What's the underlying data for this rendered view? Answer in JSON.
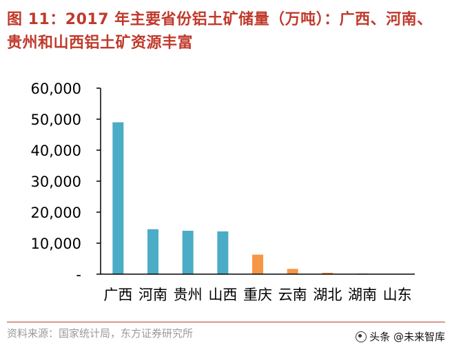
{
  "header": {
    "title": "图 11：2017 年主要省份铝土矿储量（万吨）：广西、河南、贵州和山西铝土矿资源丰富"
  },
  "footer": {
    "source": "资料来源：国家统计局，东方证券研究所",
    "watermark": "头条 @未来智库"
  },
  "colors": {
    "title": "#c0392b",
    "bar_blue": "#4bacc6",
    "bar_orange": "#f79646",
    "axis": "#000000"
  },
  "chart_data": {
    "type": "bar",
    "title": "",
    "xlabel": "",
    "ylabel": "",
    "categories": [
      "广西",
      "河南",
      "贵州",
      "山西",
      "重庆",
      "云南",
      "湖北",
      "湖南",
      "山东"
    ],
    "values": [
      49000,
      14500,
      14000,
      13800,
      6300,
      1700,
      450,
      200,
      80
    ],
    "bar_colors": [
      "#4bacc6",
      "#4bacc6",
      "#4bacc6",
      "#4bacc6",
      "#f79646",
      "#f79646",
      "#f79646",
      "#f79646",
      "#f79646"
    ],
    "ylim": [
      0,
      60000
    ],
    "yticks": [
      0,
      10000,
      20000,
      30000,
      40000,
      50000,
      60000
    ],
    "ytick_labels": [
      "-",
      "10,000",
      "20,000",
      "30,000",
      "40,000",
      "50,000",
      "60,000"
    ],
    "grid": false,
    "legend": "none"
  }
}
